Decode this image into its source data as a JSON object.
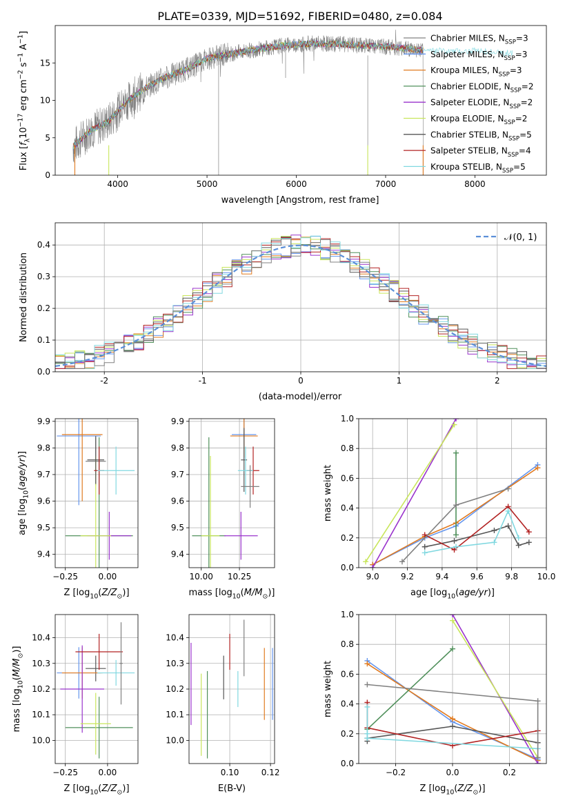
{
  "figure_title": "PLATE=0339, MJD=51692, FIBERID=0480, z=0.084",
  "models": [
    {
      "imf": "Chabrier",
      "lib": "MILES",
      "n": "3",
      "color": "#808080"
    },
    {
      "imf": "Salpeter",
      "lib": "MILES",
      "n": "3",
      "color": "#6495ed"
    },
    {
      "imf": "Kroupa",
      "lib": "MILES",
      "n": "3",
      "color": "#e07a1f"
    },
    {
      "imf": "Chabrier",
      "lib": "ELODIE",
      "n": "2",
      "color": "#4f8f5a"
    },
    {
      "imf": "Salpeter",
      "lib": "ELODIE",
      "n": "2",
      "color": "#9932cc"
    },
    {
      "imf": "Kroupa",
      "lib": "ELODIE",
      "n": "2",
      "color": "#c8e65a"
    },
    {
      "imf": "Chabrier",
      "lib": "STELIB",
      "n": "5",
      "color": "#555555"
    },
    {
      "imf": "Salpeter",
      "lib": "STELIB",
      "n": "4",
      "color": "#b22222"
    },
    {
      "imf": "Kroupa",
      "lib": "STELIB",
      "n": "5",
      "color": "#80d8e0"
    }
  ],
  "legend_prefix": "N",
  "legend_sub": "SSP",
  "legend_eq": "=",
  "gaussian_label": "𝒩(0, 1)",
  "chart_data": [
    {
      "type": "line",
      "id": "spectrum",
      "xlabel": "wavelength [Angstrom, rest frame]",
      "ylabel": "Flux [f_λ10^-17 erg cm^-2 s^-1 A^-1]",
      "xlim": [
        3300,
        8800
      ],
      "ylim": [
        0,
        20
      ],
      "xticks": [
        4000,
        5000,
        6000,
        7000,
        8000
      ],
      "yticks": [
        0,
        5,
        10,
        15
      ],
      "continuum": {
        "x": [
          3500,
          3700,
          3900,
          4100,
          4300,
          4500,
          4800,
          5000,
          5300,
          5600,
          5900,
          6200,
          6500,
          6800,
          7100,
          7400,
          7700,
          8000,
          8300
        ],
        "y": [
          3.8,
          6.0,
          7.2,
          9.8,
          11.6,
          12.9,
          14.3,
          15.6,
          16.3,
          16.9,
          17.4,
          17.6,
          17.5,
          17.3,
          17.1,
          16.7,
          16.6,
          16.6,
          16.3
        ]
      },
      "observed_range": [
        3500,
        7420
      ],
      "model_range": [
        3500,
        8420
      ],
      "legend": "top-right",
      "grid": false
    },
    {
      "type": "area",
      "id": "residuals",
      "xlabel": "(data-model)/error",
      "ylabel": "Normed distribution",
      "xlim": [
        -2.5,
        2.5
      ],
      "ylim": [
        0,
        0.47
      ],
      "xticks": [
        -2,
        -1,
        0,
        1,
        2
      ],
      "yticks": [
        0.0,
        0.1,
        0.2,
        0.3,
        0.4
      ],
      "bin_width": 0.1,
      "gaussian": {
        "mean": 0,
        "sigma": 1
      },
      "legend": "top-right",
      "grid": true
    },
    {
      "type": "scatter",
      "id": "age_vs_Z",
      "xlabel": "Z [log10(Z/Z⊙)]",
      "ylabel": "age [log10(age/yr)]",
      "xlim": [
        -0.31,
        0.18
      ],
      "ylim": [
        9.35,
        9.91
      ],
      "xticks": [
        -0.25,
        0.0
      ],
      "xticklabels": [
        "−0.25",
        "0.00"
      ],
      "yticks": [
        9.4,
        9.5,
        9.6,
        9.7,
        9.8,
        9.9
      ],
      "points": [
        {
          "x": -0.07,
          "y": 9.75,
          "xerr": 0.06,
          "yerr": 0.09,
          "model": 0
        },
        {
          "x": -0.17,
          "y": 9.845,
          "xerr": 0.13,
          "yerr": 0.26,
          "model": 1
        },
        {
          "x": -0.15,
          "y": 9.85,
          "xerr": 0.12,
          "yerr": 0.25,
          "model": 2
        },
        {
          "x": -0.05,
          "y": 9.47,
          "xerr": 0.2,
          "yerr": 0.37,
          "model": 3
        },
        {
          "x": 0.01,
          "y": 9.47,
          "xerr": 0.13,
          "yerr": 0.09,
          "model": 4
        },
        {
          "x": -0.07,
          "y": 9.47,
          "xerr": 0.09,
          "yerr": 0.3,
          "model": 5
        },
        {
          "x": -0.07,
          "y": 9.755,
          "xerr": 0.05,
          "yerr": 0.09,
          "model": 6
        },
        {
          "x": -0.05,
          "y": 9.715,
          "xerr": 0.03,
          "yerr": 0.09,
          "model": 7
        },
        {
          "x": 0.05,
          "y": 9.715,
          "xerr": 0.11,
          "yerr": 0.09,
          "model": 8
        }
      ]
    },
    {
      "type": "scatter",
      "id": "age_vs_mass",
      "xlabel": "mass [log10(M/M⊙)]",
      "ylabel": "",
      "xlim": [
        9.92,
        10.48
      ],
      "ylim": [
        9.35,
        9.91
      ],
      "xticks": [
        10.0,
        10.25
      ],
      "xticklabels": [
        "10.00",
        "10.25"
      ],
      "yticks": [
        9.4,
        9.5,
        9.6,
        9.7,
        9.8,
        9.9
      ],
      "points": [
        {
          "x": 10.28,
          "y": 9.85,
          "xerr": 0.08,
          "yerr": 0.09,
          "model": 1
        },
        {
          "x": 10.28,
          "y": 9.845,
          "xerr": 0.09,
          "yerr": 0.08,
          "model": 2
        },
        {
          "x": 10.05,
          "y": 9.47,
          "xerr": 0.11,
          "yerr": 0.37,
          "model": 3
        },
        {
          "x": 10.26,
          "y": 9.47,
          "xerr": 0.11,
          "yerr": 0.09,
          "model": 4
        },
        {
          "x": 10.06,
          "y": 9.47,
          "xerr": 0.06,
          "yerr": 0.3,
          "model": 5
        },
        {
          "x": 10.28,
          "y": 9.755,
          "xerr": 0.02,
          "yerr": 0.12,
          "model": 6
        },
        {
          "x": 10.34,
          "y": 9.715,
          "xerr": 0.04,
          "yerr": 0.09,
          "model": 7
        },
        {
          "x": 10.29,
          "y": 9.715,
          "xerr": 0.05,
          "yerr": 0.09,
          "model": 8
        },
        {
          "x": 10.32,
          "y": 9.655,
          "xerr": 0.06,
          "yerr": 0.08,
          "model": 0
        }
      ]
    },
    {
      "type": "line",
      "id": "weight_vs_age",
      "xlabel": "age [log10(age/yr)]",
      "ylabel": "mass weight",
      "xlim": [
        8.92,
        10.0
      ],
      "ylim": [
        0,
        1
      ],
      "xticks": [
        9.0,
        9.2,
        9.4,
        9.6,
        9.8,
        10.0
      ],
      "yticks": [
        0.0,
        0.2,
        0.4,
        0.6,
        0.8,
        1.0
      ],
      "grid": true,
      "series": [
        {
          "model": 1,
          "x": [
            9.0,
            9.3,
            9.48,
            9.95
          ],
          "y": [
            0.02,
            0.2,
            0.28,
            0.69
          ]
        },
        {
          "model": 2,
          "x": [
            9.0,
            9.3,
            9.48,
            9.95
          ],
          "y": [
            0.02,
            0.21,
            0.3,
            0.67
          ]
        },
        {
          "model": 3,
          "x": [
            9.48,
            9.48
          ],
          "y": [
            0.22,
            0.77
          ]
        },
        {
          "model": 4,
          "x": [
            9.0,
            9.48
          ],
          "y": [
            0.0,
            1.0
          ]
        },
        {
          "model": 5,
          "x": [
            8.96,
            9.47
          ],
          "y": [
            0.04,
            0.96
          ]
        },
        {
          "model": 6,
          "x": [
            9.3,
            9.47,
            9.7,
            9.78,
            9.84,
            9.9
          ],
          "y": [
            0.14,
            0.18,
            0.25,
            0.28,
            0.15,
            0.17
          ]
        },
        {
          "model": 7,
          "x": [
            9.3,
            9.47,
            9.78,
            9.9
          ],
          "y": [
            0.22,
            0.12,
            0.41,
            0.24
          ]
        },
        {
          "model": 8,
          "x": [
            9.3,
            9.48,
            9.7,
            9.78,
            9.84
          ],
          "y": [
            0.1,
            0.14,
            0.17,
            0.38,
            0.2
          ]
        },
        {
          "model": 0,
          "x": [
            9.17,
            9.48,
            9.78
          ],
          "y": [
            0.04,
            0.42,
            0.53
          ]
        }
      ]
    },
    {
      "type": "scatter",
      "id": "mass_vs_Z",
      "xlabel": "Z [log10(Z/Z⊙)]",
      "ylabel": "mass [log10(M/M⊙)]",
      "xlim": [
        -0.31,
        0.18
      ],
      "ylim": [
        9.91,
        10.49
      ],
      "xticks": [
        -0.25,
        0.0
      ],
      "xticklabels": [
        "−0.25",
        "0.00"
      ],
      "yticks": [
        10.0,
        10.1,
        10.2,
        10.3,
        10.4
      ],
      "points": [
        {
          "x": -0.07,
          "y": 10.28,
          "xerr": 0.06,
          "yerr": 0.05,
          "model": 6
        },
        {
          "x": -0.17,
          "y": 10.263,
          "xerr": 0.13,
          "yerr": 0.1,
          "model": 1
        },
        {
          "x": -0.15,
          "y": 10.263,
          "xerr": 0.12,
          "yerr": 0.1,
          "model": 2
        },
        {
          "x": -0.05,
          "y": 10.05,
          "xerr": 0.2,
          "yerr": 0.12,
          "model": 3
        },
        {
          "x": -0.15,
          "y": 10.2,
          "xerr": 0.13,
          "yerr": 0.17,
          "model": 4
        },
        {
          "x": -0.07,
          "y": 10.065,
          "xerr": 0.09,
          "yerr": 0.12,
          "model": 5
        },
        {
          "x": -0.05,
          "y": 10.345,
          "xerr": 0.14,
          "yerr": 0.07,
          "model": 7
        },
        {
          "x": 0.05,
          "y": 10.263,
          "xerr": 0.11,
          "yerr": 0.05,
          "model": 8
        },
        {
          "x": 0.08,
          "y": 10.3,
          "xerr": 0.01,
          "yerr": 0.16,
          "model": 0
        }
      ]
    },
    {
      "type": "scatter",
      "id": "mass_vs_ebv",
      "xlabel": "E(B-V)",
      "ylabel": "",
      "xlim": [
        0.08,
        0.122
      ],
      "ylim": [
        9.91,
        10.49
      ],
      "xticks": [
        0.1,
        0.12
      ],
      "xticklabels": [
        "0.10",
        "0.12"
      ],
      "yticks": [
        10.0,
        10.1,
        10.2,
        10.3,
        10.4
      ],
      "points": [
        {
          "x": 0.081,
          "y": 10.22,
          "yerr": 0.16,
          "model": 4
        },
        {
          "x": 0.086,
          "y": 10.1,
          "yerr": 0.16,
          "model": 5
        },
        {
          "x": 0.089,
          "y": 10.1,
          "yerr": 0.17,
          "model": 3
        },
        {
          "x": 0.097,
          "y": 10.245,
          "yerr": 0.085,
          "model": 6
        },
        {
          "x": 0.1,
          "y": 10.345,
          "yerr": 0.07,
          "model": 7
        },
        {
          "x": 0.104,
          "y": 10.2,
          "yerr": 0.07,
          "model": 8
        },
        {
          "x": 0.107,
          "y": 10.36,
          "yerr": 0.11,
          "model": 0
        },
        {
          "x": 0.117,
          "y": 10.22,
          "yerr": 0.14,
          "model": 2
        },
        {
          "x": 0.121,
          "y": 10.22,
          "yerr": 0.14,
          "model": 1
        }
      ]
    },
    {
      "type": "line",
      "id": "weight_vs_Z",
      "xlabel": "Z [log10(Z/Z⊙)]",
      "ylabel": "mass weight",
      "xlim": [
        -0.33,
        0.33
      ],
      "ylim": [
        0,
        1
      ],
      "xticks": [
        -0.2,
        0.0,
        0.2
      ],
      "xticklabels": [
        "−0.2",
        "0.0",
        "0.2"
      ],
      "yticks": [
        0.0,
        0.2,
        0.4,
        0.6,
        0.8,
        1.0
      ],
      "grid": true,
      "series": [
        {
          "model": 1,
          "x": [
            -0.3,
            0.0,
            0.3
          ],
          "y": [
            0.69,
            0.28,
            0.03
          ]
        },
        {
          "model": 2,
          "x": [
            -0.3,
            0.0,
            0.3
          ],
          "y": [
            0.67,
            0.3,
            0.02
          ]
        },
        {
          "model": 3,
          "x": [
            -0.3,
            0.0
          ],
          "y": [
            0.23,
            0.77
          ]
        },
        {
          "model": 4,
          "x": [
            0.0,
            0.3
          ],
          "y": [
            1.0,
            0.0
          ]
        },
        {
          "model": 5,
          "x": [
            0.0,
            0.3
          ],
          "y": [
            0.96,
            0.04
          ]
        },
        {
          "model": 6,
          "x": [
            -0.3,
            -0.3,
            0.0,
            0.3
          ],
          "y": [
            0.15,
            0.17,
            0.25,
            0.14
          ]
        },
        {
          "model": 7,
          "x": [
            -0.3,
            -0.3,
            0.0,
            0.3
          ],
          "y": [
            0.41,
            0.24,
            0.12,
            0.22
          ]
        },
        {
          "model": 8,
          "x": [
            -0.3,
            -0.3,
            -0.3,
            0.3
          ],
          "y": [
            0.38,
            0.2,
            0.17,
            0.1
          ]
        },
        {
          "model": 0,
          "x": [
            -0.3,
            0.3,
            0.3
          ],
          "y": [
            0.53,
            0.42,
            0.04
          ]
        }
      ]
    }
  ]
}
